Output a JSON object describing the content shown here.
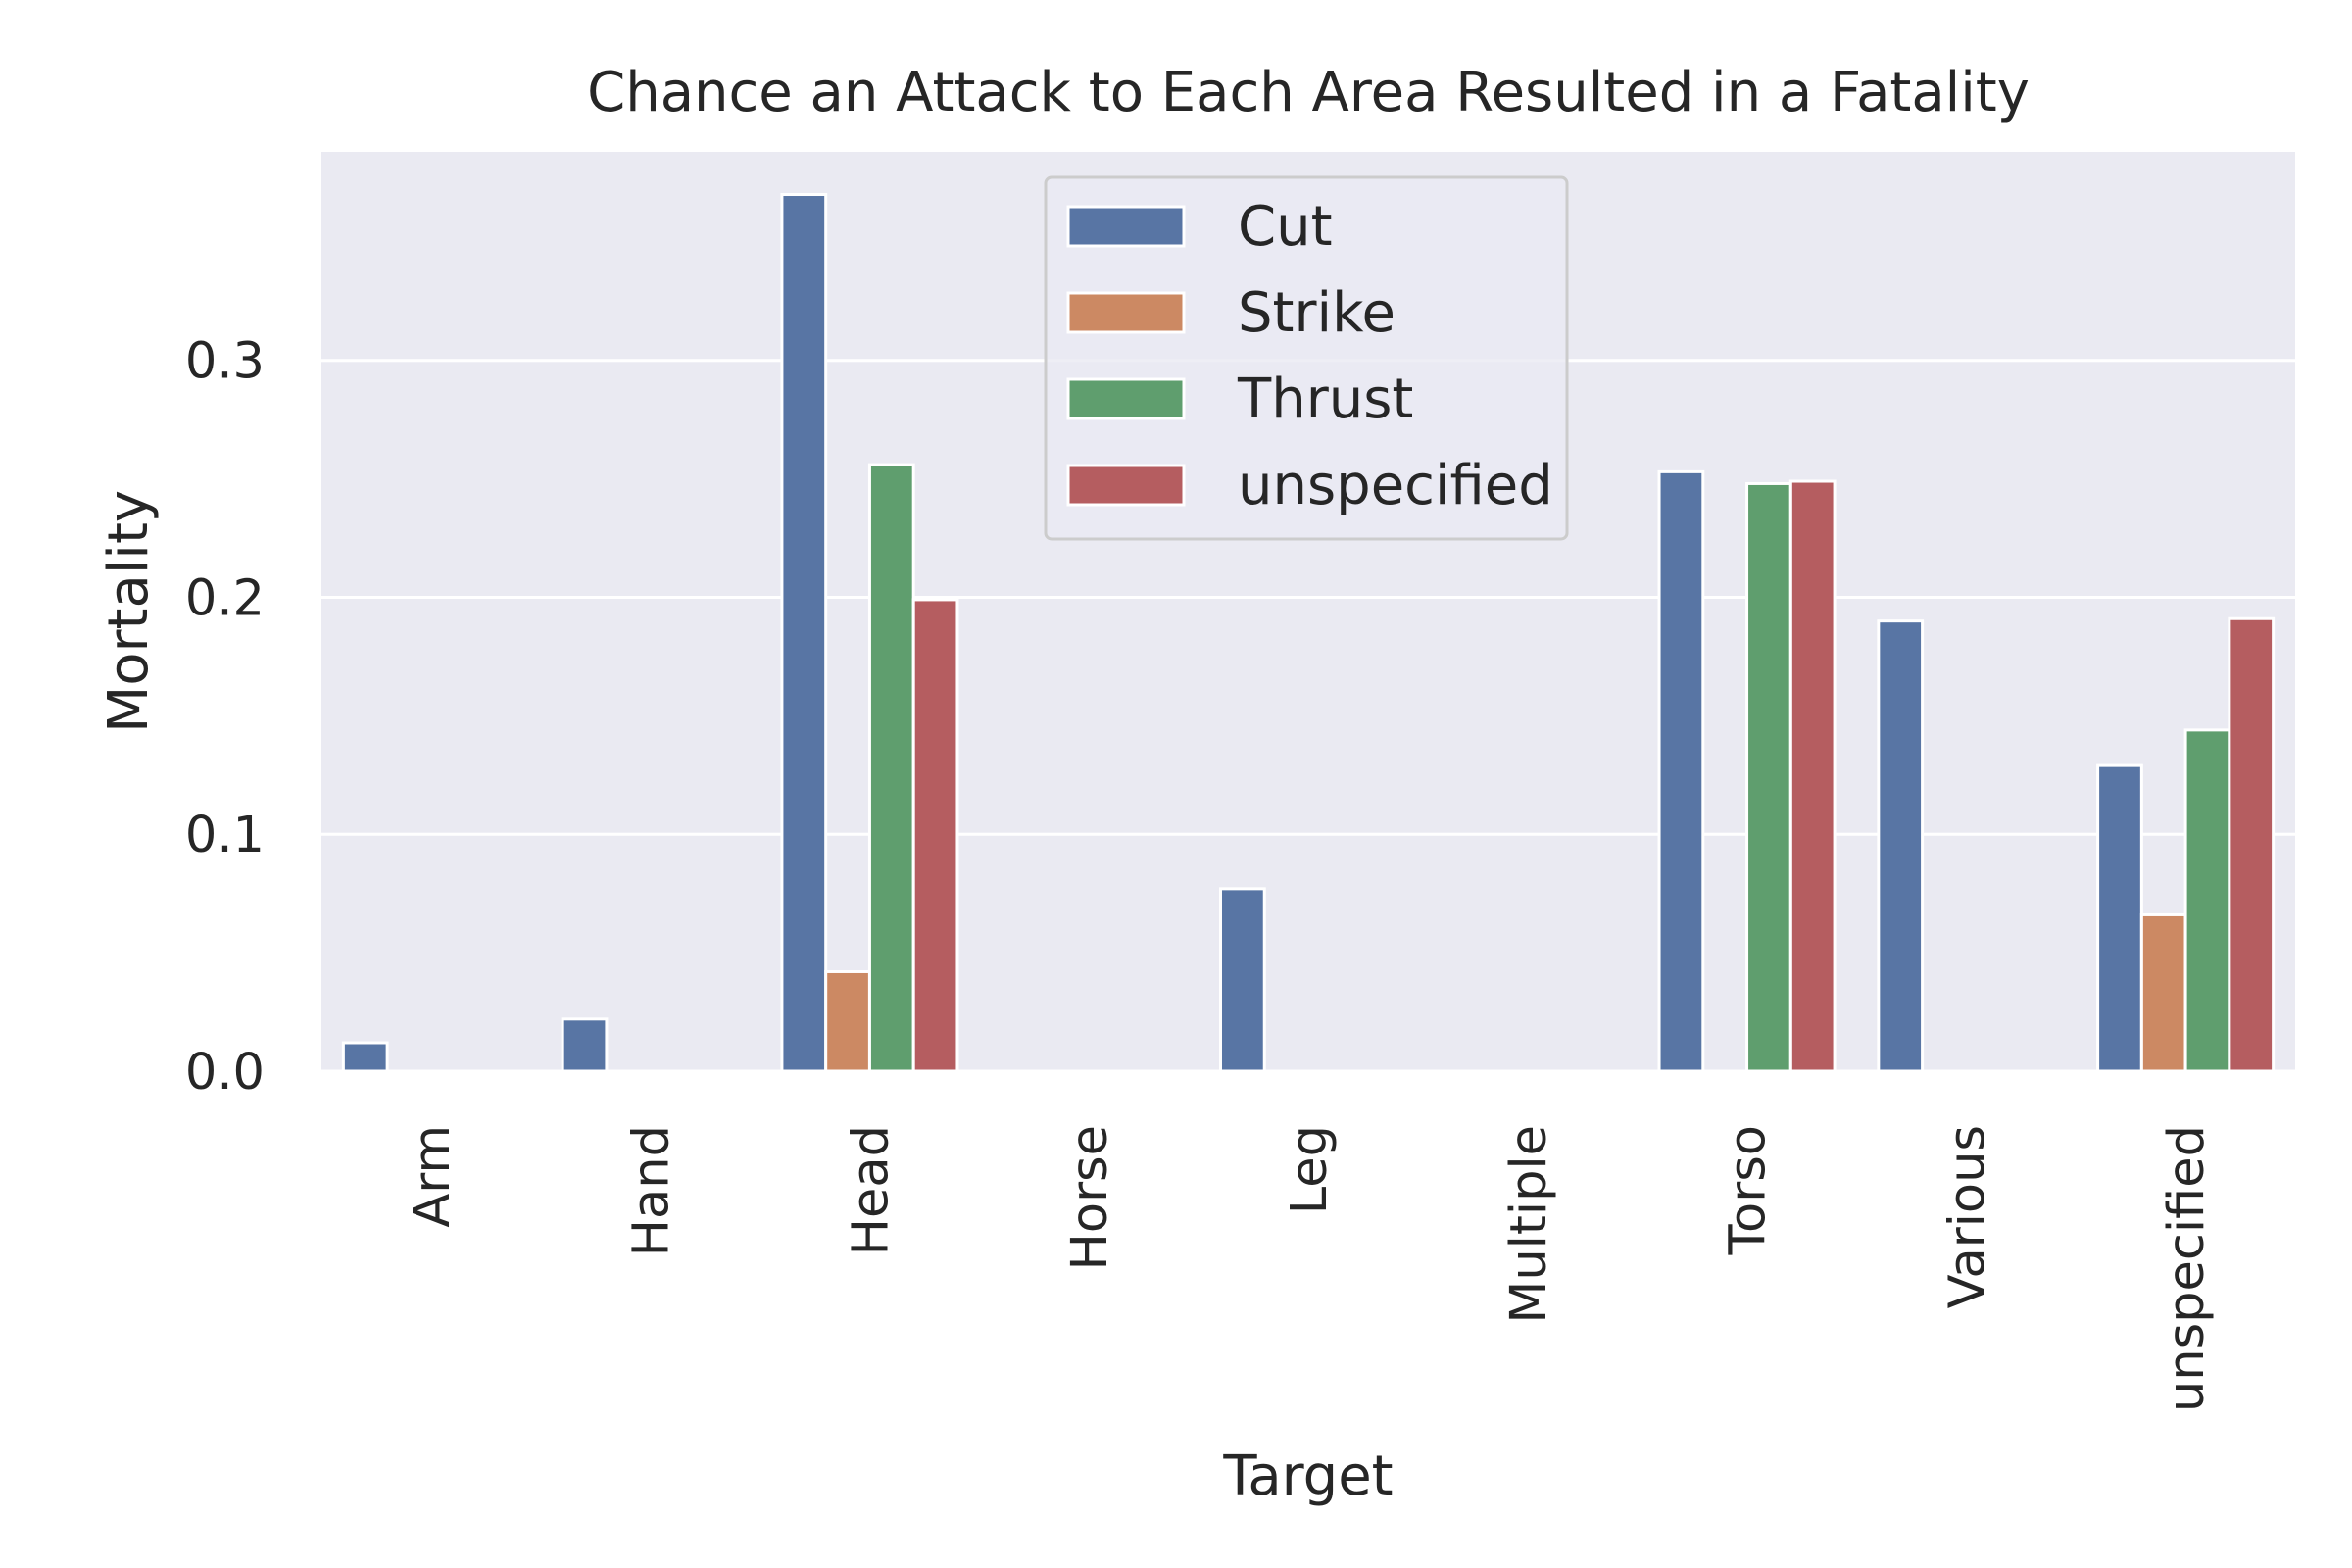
{
  "chart_data": {
    "type": "bar",
    "title": "Chance an Attack to Each Area Resulted in a Fatality",
    "xlabel": "Target",
    "ylabel": "Mortality",
    "categories": [
      "Arm",
      "Hand",
      "Head",
      "Horse",
      "Leg",
      "Multiple",
      "Torso",
      "Various",
      "unspecified"
    ],
    "series": [
      {
        "name": "Cut",
        "color": "#5875a4",
        "values": [
          0.012,
          0.022,
          0.37,
          0.0,
          0.077,
          0.0,
          0.253,
          0.19,
          0.129
        ]
      },
      {
        "name": "Strike",
        "color": "#cc8963",
        "values": [
          0.0,
          0.0,
          0.042,
          0.0,
          0.0,
          0.0,
          0.0,
          0.0,
          0.066
        ]
      },
      {
        "name": "Thrust",
        "color": "#5f9e6e",
        "values": [
          0.0,
          0.0,
          0.256,
          0.0,
          0.0,
          0.0,
          0.248,
          0.0,
          0.144
        ]
      },
      {
        "name": "unspecified",
        "color": "#b55d60",
        "values": [
          0.0,
          0.0,
          0.199,
          0.0,
          0.0,
          0.0,
          0.249,
          0.0,
          0.191
        ]
      }
    ],
    "yticks": [
      0.0,
      0.1,
      0.2,
      0.3
    ],
    "ytick_labels": [
      "0.0",
      "0.1",
      "0.2",
      "0.3"
    ],
    "ylim": [
      0,
      0.388
    ],
    "grid": true,
    "legend_position": "top-center",
    "background": "#eaeaf2",
    "grid_color": "#ffffff"
  }
}
